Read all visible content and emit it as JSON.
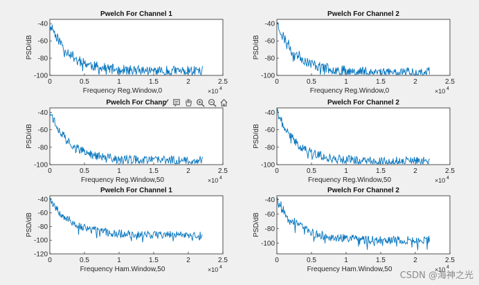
{
  "toolbar": {
    "icons": [
      "brush-icon",
      "datatip-icon",
      "pan-icon",
      "zoom-in-icon",
      "zoom-out-icon",
      "home-icon"
    ],
    "accent": "#555555"
  },
  "watermark": "CSDN @海神之光",
  "chart_data": [
    {
      "type": "line",
      "title": "Pwelch For Channel 1",
      "xlabel": "Frequency   Reg.Window,0",
      "ylabel": "PSD/dB",
      "x_exponent": "×10",
      "x_exponent_power": "4",
      "xlim": [
        0,
        25000
      ],
      "ylim": [
        -100,
        -35
      ],
      "xticks": [
        0,
        5000,
        10000,
        15000,
        20000,
        25000
      ],
      "xtick_labels": [
        "0",
        "0.5",
        "1",
        "1.5",
        "2",
        "2.5"
      ],
      "yticks": [
        -40,
        -60,
        -80,
        -100
      ],
      "ytick_labels": [
        "-40",
        "-60",
        "-80",
        "-100"
      ],
      "series": [
        {
          "name": "PSD",
          "color": "#0072BD",
          "x_end": 22050,
          "start_db": -38,
          "floor_db": -95,
          "decay": 2800,
          "noise_db": 6,
          "seed": 11
        }
      ]
    },
    {
      "type": "line",
      "title": "Pwelch For Channel 2",
      "xlabel": "Frequency   Reg.Window,0",
      "ylabel": "PSD/dB",
      "x_exponent": "×10",
      "x_exponent_power": "4",
      "xlim": [
        0,
        25000
      ],
      "ylim": [
        -100,
        -35
      ],
      "xticks": [
        0,
        5000,
        10000,
        15000,
        20000,
        25000
      ],
      "xtick_labels": [
        "0",
        "0.5",
        "1",
        "1.5",
        "2",
        "2.5"
      ],
      "yticks": [
        -40,
        -60,
        -80,
        -100
      ],
      "ytick_labels": [
        "-40",
        "-60",
        "-80",
        "-100"
      ],
      "series": [
        {
          "name": "PSD",
          "color": "#0072BD",
          "x_end": 22050,
          "start_db": -38,
          "floor_db": -96,
          "decay": 2800,
          "noise_db": 6,
          "seed": 23
        }
      ]
    },
    {
      "type": "line",
      "title": "Pwelch For Chann",
      "xlabel": "Frequency   Reg.Window,50",
      "ylabel": "PSD/dB",
      "x_exponent": "×10",
      "x_exponent_power": "4",
      "xlim": [
        0,
        25000
      ],
      "ylim": [
        -100,
        -35
      ],
      "xticks": [
        0,
        5000,
        10000,
        15000,
        20000,
        25000
      ],
      "xtick_labels": [
        "0",
        "0.5",
        "1",
        "1.5",
        "2",
        "2.5"
      ],
      "yticks": [
        -40,
        -60,
        -80,
        -100
      ],
      "ytick_labels": [
        "-40",
        "-60",
        "-80",
        "-100"
      ],
      "series": [
        {
          "name": "PSD",
          "color": "#0072BD",
          "x_end": 22050,
          "start_db": -38,
          "floor_db": -95,
          "decay": 2800,
          "noise_db": 5,
          "seed": 37
        }
      ]
    },
    {
      "type": "line",
      "title": "Pwelch For Channel 2",
      "xlabel": "Frequency   Reg.Window,50",
      "ylabel": "PSD/dB",
      "x_exponent": "×10",
      "x_exponent_power": "4",
      "xlim": [
        0,
        25000
      ],
      "ylim": [
        -100,
        -35
      ],
      "xticks": [
        0,
        5000,
        10000,
        15000,
        20000,
        25000
      ],
      "xtick_labels": [
        "0",
        "0.5",
        "1",
        "1.5",
        "2",
        "2.5"
      ],
      "yticks": [
        -40,
        -60,
        -80,
        -100
      ],
      "ytick_labels": [
        "-40",
        "-60",
        "-80",
        "-100"
      ],
      "series": [
        {
          "name": "PSD",
          "color": "#0072BD",
          "x_end": 22050,
          "start_db": -38,
          "floor_db": -96,
          "decay": 2800,
          "noise_db": 5,
          "seed": 41
        }
      ]
    },
    {
      "type": "line",
      "title": "Pwelch For Channel 1",
      "xlabel": "Frequency   Ham.Window,50",
      "ylabel": "PSD/dB",
      "x_exponent": "×10",
      "x_exponent_power": "4",
      "xlim": [
        0,
        25000
      ],
      "ylim": [
        -120,
        -35
      ],
      "xticks": [
        0,
        5000,
        10000,
        15000,
        20000,
        25000
      ],
      "xtick_labels": [
        "0",
        "0.5",
        "1",
        "1.5",
        "2",
        "2.5"
      ],
      "yticks": [
        -40,
        -60,
        -80,
        -100,
        -120
      ],
      "ytick_labels": [
        "-40",
        "-60",
        "-80",
        "-100",
        "-120"
      ],
      "series": [
        {
          "name": "PSD",
          "color": "#0072BD",
          "x_end": 22050,
          "start_db": -38,
          "floor_db": -92,
          "decay": 3000,
          "noise_db": 6,
          "seed": 53
        }
      ]
    },
    {
      "type": "line",
      "title": "Pwelch For Channel 2",
      "xlabel": "Frequency   Ham.Window,50",
      "ylabel": "PSD/dB",
      "x_exponent": "×10",
      "x_exponent_power": "4",
      "xlim": [
        0,
        25000
      ],
      "ylim": [
        -115,
        -35
      ],
      "xticks": [
        0,
        5000,
        10000,
        15000,
        20000,
        25000
      ],
      "xtick_labels": [
        "0",
        "0.5",
        "1",
        "1.5",
        "2",
        "2.5"
      ],
      "yticks": [
        -40,
        -60,
        -80,
        -100
      ],
      "ytick_labels": [
        "-40",
        "-60",
        "-80",
        "-100"
      ],
      "series": [
        {
          "name": "PSD",
          "color": "#0072BD",
          "x_end": 22050,
          "start_db": -38,
          "floor_db": -96,
          "decay": 3000,
          "noise_db": 6,
          "seed": 67
        }
      ]
    }
  ]
}
